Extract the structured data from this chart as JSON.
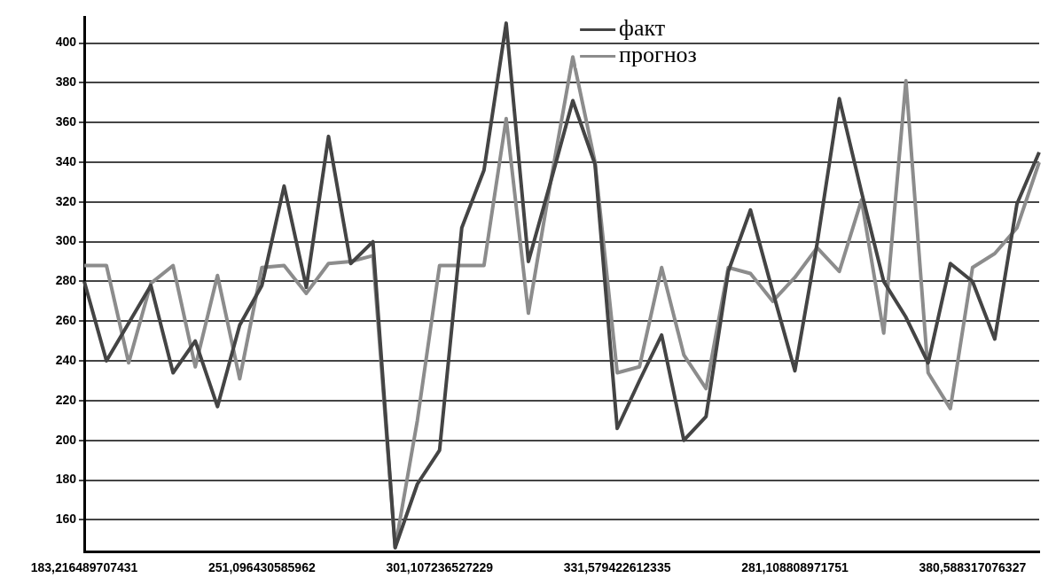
{
  "chart_data": {
    "type": "line",
    "categories": [
      "183,216489707431",
      null,
      null,
      null,
      null,
      null,
      null,
      null,
      "251,096430585962",
      null,
      null,
      null,
      null,
      null,
      null,
      null,
      "301,107236527229",
      null,
      null,
      null,
      null,
      null,
      null,
      null,
      "331,579422612335",
      null,
      null,
      null,
      null,
      null,
      null,
      null,
      "281,108808971751",
      null,
      null,
      null,
      null,
      null,
      null,
      null,
      "380,588317076327",
      null,
      null,
      null
    ],
    "series": [
      {
        "name": "факт",
        "color": "#444444",
        "values": [
          280,
          240,
          259,
          278,
          234,
          250,
          217,
          258,
          278,
          328,
          277,
          353,
          289,
          300,
          146,
          178,
          195,
          307,
          336,
          410,
          290,
          330,
          371,
          339,
          206,
          230,
          253,
          200,
          212,
          285,
          316,
          275,
          235,
          299,
          372,
          325,
          280,
          262,
          239,
          289,
          280,
          251,
          319,
          345
        ]
      },
      {
        "name": "прогноз",
        "color": "#8c8c8c",
        "values": [
          288,
          288,
          239,
          279,
          288,
          237,
          283,
          231,
          287,
          288,
          274,
          289,
          290,
          293,
          146,
          210,
          288,
          288,
          288,
          362,
          264,
          330,
          393,
          340,
          234,
          237,
          287,
          243,
          226,
          287,
          284,
          270,
          282,
          297,
          285,
          321,
          254,
          381,
          234,
          216,
          287,
          294,
          307,
          340
        ]
      }
    ],
    "ylim": [
      144,
      413
    ],
    "yticks": [
      160,
      180,
      200,
      220,
      240,
      260,
      280,
      300,
      320,
      340,
      360,
      380,
      400
    ],
    "grid": true,
    "legend": "top",
    "marker": "none",
    "line_style": "solid"
  }
}
